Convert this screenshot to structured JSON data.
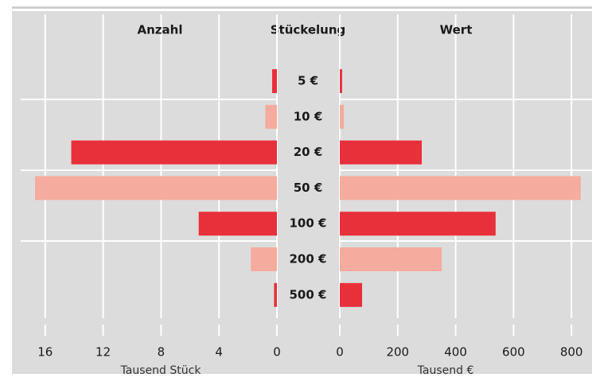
{
  "chart_data": {
    "type": "bar",
    "orientation": "horizontal",
    "category_label": "Stückelung",
    "categories": [
      "5 €",
      "10 €",
      "20 €",
      "50 €",
      "100 €",
      "200 €",
      "500 €"
    ],
    "colors": [
      "#e8303a",
      "#f5ab9d",
      "#e8303a",
      "#f5ab9d",
      "#e8303a",
      "#f5ab9d",
      "#e8303a"
    ],
    "grid": true,
    "panels": [
      {
        "title": "Anzahl",
        "values": [
          0.33,
          0.8,
          14.2,
          16.7,
          5.4,
          1.8,
          0.2
        ],
        "xlim": [
          0,
          18
        ],
        "xticks": [
          16,
          12,
          8,
          4,
          0
        ],
        "xlabel": "Tausend Stück",
        "x_reversed": true
      },
      {
        "title": "Wert",
        "values": [
          8,
          14,
          283,
          832,
          538,
          352,
          77
        ],
        "xlim": [
          0,
          860
        ],
        "xticks": [
          0,
          200,
          400,
          600,
          800
        ],
        "xlabel": "Tausend €",
        "x_reversed": false
      }
    ]
  }
}
